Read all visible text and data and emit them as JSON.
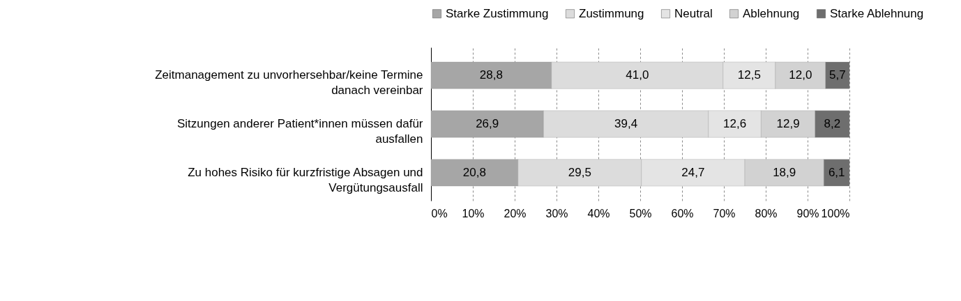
{
  "chart_data": {
    "type": "bar",
    "orientation": "horizontal",
    "stacked": true,
    "categories": [
      "Zeitmanagement zu unvorhersehbar/keine Termine danach vereinbar",
      "Sitzungen anderer Patient*innen müssen dafür ausfallen",
      "Zu hohes Risiko für kurzfristige Absagen und Vergütungsausfall"
    ],
    "series": [
      {
        "name": "Starke Zustimmung",
        "color": "#a6a6a6",
        "values": [
          28.8,
          26.9,
          20.8
        ],
        "value_labels": [
          "28,8",
          "26,9",
          "20,8"
        ]
      },
      {
        "name": "Zustimmung",
        "color": "#dcdcdc",
        "values": [
          41.0,
          39.4,
          29.5
        ],
        "value_labels": [
          "41,0",
          "39,4",
          "29,5"
        ]
      },
      {
        "name": "Neutral",
        "color": "#e4e4e4",
        "values": [
          12.5,
          12.6,
          24.7
        ],
        "value_labels": [
          "12,5",
          "12,6",
          "24,7"
        ]
      },
      {
        "name": "Ablehnung",
        "color": "#d2d2d2",
        "values": [
          12.0,
          12.9,
          18.9
        ],
        "value_labels": [
          "12,0",
          "12,9",
          "18,9"
        ]
      },
      {
        "name": "Starke Ablehnung",
        "color": "#6e6e6e",
        "values": [
          5.7,
          8.2,
          6.1
        ],
        "value_labels": [
          "5,7",
          "8,2",
          "6,1"
        ]
      }
    ],
    "xlim": [
      0,
      100
    ],
    "xticks": [
      {
        "value": 0,
        "label": "0%"
      },
      {
        "value": 10,
        "label": "10%"
      },
      {
        "value": 20,
        "label": "20%"
      },
      {
        "value": 30,
        "label": "30%"
      },
      {
        "value": 40,
        "label": "40%"
      },
      {
        "value": 50,
        "label": "50%"
      },
      {
        "value": 60,
        "label": "60%"
      },
      {
        "value": 70,
        "label": "70%"
      },
      {
        "value": 80,
        "label": "80%"
      },
      {
        "value": 90,
        "label": "90%"
      },
      {
        "value": 100,
        "label": "100%"
      }
    ],
    "grid": "x",
    "legend": "top"
  }
}
